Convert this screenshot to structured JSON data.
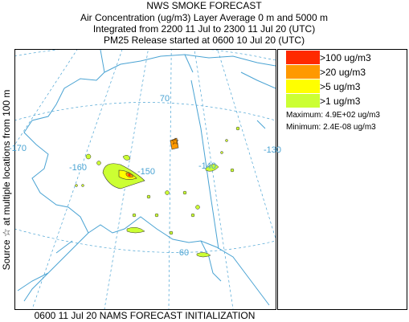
{
  "header": {
    "title": "NWS SMOKE FORECAST",
    "line1": "Air Concentration (ug/m3) Layer Average    0 m and  5000 m",
    "line2": "Integrated from 2200 11 Jul to 2300 11 Jul 20 (UTC)",
    "line3": "PM25 Release started at 0600 10 Jul 20 (UTC)"
  },
  "side_label": "Source ☆  at multiple locations  from   100 m",
  "footer": "0600 11 Jul 20 NAMS FORECAST INITIALIZATION",
  "legend": {
    "items": [
      {
        "label": ">100 ug/m3",
        "color": "#ff2a00"
      },
      {
        "label": ">20 ug/m3",
        "color": "#ff9900"
      },
      {
        "label": ">5 ug/m3",
        "color": "#ffff00"
      },
      {
        "label": ">1 ug/m3",
        "color": "#ccff33"
      }
    ],
    "maximum": "Maximum: 4.9E+02 ug/m3",
    "minimum": "Minimum: 2.4E-08 ug/m3"
  },
  "map_labels": [
    "-170",
    "-160",
    "-150",
    "-140",
    "-130",
    "70",
    "60"
  ]
}
